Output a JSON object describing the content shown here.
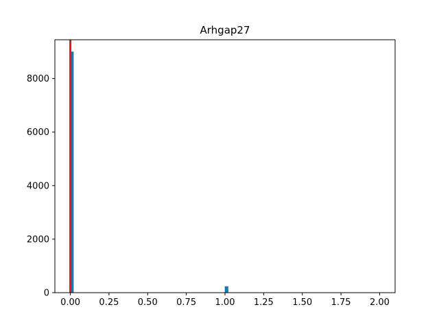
{
  "chart_data": {
    "type": "bar",
    "title": "Arhgap27",
    "xlabel": "",
    "ylabel": "",
    "xlim": [
      -0.1,
      2.1
    ],
    "ylim": [
      0,
      9450
    ],
    "grid": false,
    "bin_width": 0.02,
    "bars": [
      {
        "x": 0.01,
        "value": 9000
      },
      {
        "x": 1.01,
        "value": 230
      }
    ],
    "threshold_line": {
      "x": 0.0,
      "color": "#e31a1c"
    },
    "x_ticks": [
      {
        "value": 0.0,
        "label": "0.00"
      },
      {
        "value": 0.25,
        "label": "0.25"
      },
      {
        "value": 0.5,
        "label": "0.50"
      },
      {
        "value": 0.75,
        "label": "0.75"
      },
      {
        "value": 1.0,
        "label": "1.00"
      },
      {
        "value": 1.25,
        "label": "1.25"
      },
      {
        "value": 1.5,
        "label": "1.50"
      },
      {
        "value": 1.75,
        "label": "1.75"
      },
      {
        "value": 2.0,
        "label": "2.00"
      }
    ],
    "y_ticks": [
      {
        "value": 0,
        "label": "0"
      },
      {
        "value": 2000,
        "label": "2000"
      },
      {
        "value": 4000,
        "label": "4000"
      },
      {
        "value": 6000,
        "label": "6000"
      },
      {
        "value": 8000,
        "label": "8000"
      }
    ],
    "colors": {
      "bar": "#1f77b4",
      "bar_edge": "#1f6a9a"
    }
  }
}
